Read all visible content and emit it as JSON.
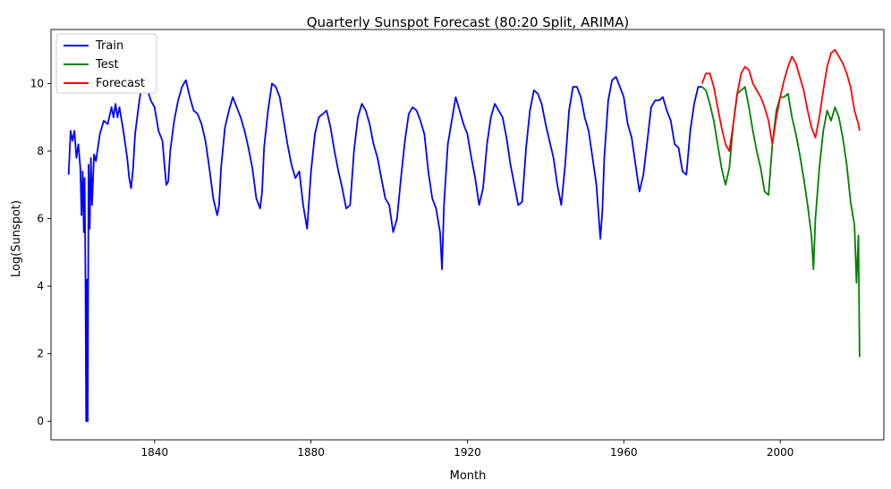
{
  "chart_data": {
    "type": "line",
    "title": "Quarterly Sunspot Forecast (80:20 Split, ARIMA)",
    "xlabel": "Month",
    "ylabel": "Log(Sunspot)",
    "xlim": [
      1813.5,
      2026.5
    ],
    "ylim": [
      -0.55,
      11.6
    ],
    "xticks": [
      1840,
      1880,
      1920,
      1960,
      2000
    ],
    "yticks": [
      0,
      2,
      4,
      6,
      8,
      10
    ],
    "grid": false,
    "legend_position": "top-left",
    "series": [
      {
        "name": "Train",
        "color": "#0000ff",
        "points": [
          [
            1818.0,
            7.3
          ],
          [
            1818.5,
            8.6
          ],
          [
            1819.0,
            8.3
          ],
          [
            1819.5,
            8.6
          ],
          [
            1820.0,
            7.8
          ],
          [
            1820.5,
            8.2
          ],
          [
            1821.0,
            7.5
          ],
          [
            1821.3,
            6.1
          ],
          [
            1821.6,
            7.4
          ],
          [
            1821.9,
            5.6
          ],
          [
            1822.1,
            7.2
          ],
          [
            1822.3,
            4.4
          ],
          [
            1822.5,
            0.0
          ],
          [
            1822.7,
            4.2
          ],
          [
            1822.9,
            0.0
          ],
          [
            1823.1,
            7.6
          ],
          [
            1823.4,
            5.7
          ],
          [
            1823.7,
            7.8
          ],
          [
            1824.0,
            6.4
          ],
          [
            1824.5,
            7.9
          ],
          [
            1825.0,
            7.7
          ],
          [
            1826.0,
            8.5
          ],
          [
            1827.0,
            8.9
          ],
          [
            1828.0,
            8.8
          ],
          [
            1829.0,
            9.3
          ],
          [
            1829.5,
            9.0
          ],
          [
            1830.0,
            9.4
          ],
          [
            1830.5,
            9.0
          ],
          [
            1831.0,
            9.3
          ],
          [
            1832.0,
            8.6
          ],
          [
            1833.0,
            7.8
          ],
          [
            1833.5,
            7.2
          ],
          [
            1834.0,
            6.9
          ],
          [
            1834.5,
            7.5
          ],
          [
            1835.0,
            8.5
          ],
          [
            1836.0,
            9.4
          ],
          [
            1837.0,
            10.2
          ],
          [
            1837.5,
            9.9
          ],
          [
            1838.0,
            9.9
          ],
          [
            1839.0,
            9.5
          ],
          [
            1840.0,
            9.3
          ],
          [
            1841.0,
            8.6
          ],
          [
            1842.0,
            8.3
          ],
          [
            1842.5,
            7.6
          ],
          [
            1843.0,
            7.0
          ],
          [
            1843.5,
            7.1
          ],
          [
            1844.0,
            8.0
          ],
          [
            1845.0,
            8.9
          ],
          [
            1846.0,
            9.5
          ],
          [
            1847.0,
            9.9
          ],
          [
            1847.5,
            10.0
          ],
          [
            1848.0,
            10.1
          ],
          [
            1849.0,
            9.6
          ],
          [
            1850.0,
            9.2
          ],
          [
            1851.0,
            9.1
          ],
          [
            1852.0,
            8.8
          ],
          [
            1853.0,
            8.3
          ],
          [
            1854.0,
            7.5
          ],
          [
            1855.0,
            6.6
          ],
          [
            1856.0,
            6.1
          ],
          [
            1856.5,
            6.4
          ],
          [
            1857.0,
            7.5
          ],
          [
            1858.0,
            8.7
          ],
          [
            1859.0,
            9.2
          ],
          [
            1860.0,
            9.6
          ],
          [
            1861.0,
            9.3
          ],
          [
            1862.0,
            9.0
          ],
          [
            1863.0,
            8.6
          ],
          [
            1864.0,
            8.1
          ],
          [
            1865.0,
            7.5
          ],
          [
            1866.0,
            6.6
          ],
          [
            1867.0,
            6.3
          ],
          [
            1867.5,
            6.8
          ],
          [
            1868.0,
            8.1
          ],
          [
            1869.0,
            9.2
          ],
          [
            1870.0,
            10.0
          ],
          [
            1871.0,
            9.9
          ],
          [
            1872.0,
            9.6
          ],
          [
            1873.0,
            8.9
          ],
          [
            1874.0,
            8.2
          ],
          [
            1875.0,
            7.6
          ],
          [
            1876.0,
            7.2
          ],
          [
            1877.0,
            7.4
          ],
          [
            1878.0,
            6.4
          ],
          [
            1879.0,
            5.7
          ],
          [
            1880.0,
            7.4
          ],
          [
            1881.0,
            8.5
          ],
          [
            1882.0,
            9.0
          ],
          [
            1883.0,
            9.1
          ],
          [
            1884.0,
            9.2
          ],
          [
            1885.0,
            8.7
          ],
          [
            1886.0,
            8.0
          ],
          [
            1887.0,
            7.4
          ],
          [
            1888.0,
            6.9
          ],
          [
            1889.0,
            6.3
          ],
          [
            1890.0,
            6.4
          ],
          [
            1891.0,
            8.0
          ],
          [
            1892.0,
            9.0
          ],
          [
            1893.0,
            9.4
          ],
          [
            1894.0,
            9.2
          ],
          [
            1895.0,
            8.8
          ],
          [
            1896.0,
            8.2
          ],
          [
            1897.0,
            7.8
          ],
          [
            1898.0,
            7.2
          ],
          [
            1899.0,
            6.6
          ],
          [
            1900.0,
            6.4
          ],
          [
            1901.0,
            5.6
          ],
          [
            1902.0,
            6.0
          ],
          [
            1903.0,
            7.2
          ],
          [
            1904.0,
            8.3
          ],
          [
            1905.0,
            9.1
          ],
          [
            1906.0,
            9.3
          ],
          [
            1907.0,
            9.2
          ],
          [
            1908.0,
            8.9
          ],
          [
            1909.0,
            8.5
          ],
          [
            1910.0,
            7.4
          ],
          [
            1911.0,
            6.6
          ],
          [
            1912.0,
            6.3
          ],
          [
            1913.0,
            5.6
          ],
          [
            1913.5,
            4.5
          ],
          [
            1914.0,
            6.4
          ],
          [
            1915.0,
            8.2
          ],
          [
            1916.0,
            8.9
          ],
          [
            1917.0,
            9.6
          ],
          [
            1918.0,
            9.2
          ],
          [
            1919.0,
            8.8
          ],
          [
            1920.0,
            8.5
          ],
          [
            1921.0,
            7.8
          ],
          [
            1922.0,
            7.2
          ],
          [
            1923.0,
            6.4
          ],
          [
            1924.0,
            6.9
          ],
          [
            1925.0,
            8.2
          ],
          [
            1926.0,
            9.0
          ],
          [
            1927.0,
            9.4
          ],
          [
            1928.0,
            9.2
          ],
          [
            1929.0,
            9.0
          ],
          [
            1930.0,
            8.4
          ],
          [
            1931.0,
            7.6
          ],
          [
            1932.0,
            7.0
          ],
          [
            1933.0,
            6.4
          ],
          [
            1934.0,
            6.5
          ],
          [
            1935.0,
            8.1
          ],
          [
            1936.0,
            9.2
          ],
          [
            1937.0,
            9.8
          ],
          [
            1938.0,
            9.7
          ],
          [
            1939.0,
            9.4
          ],
          [
            1940.0,
            8.8
          ],
          [
            1941.0,
            8.3
          ],
          [
            1942.0,
            7.8
          ],
          [
            1943.0,
            7.0
          ],
          [
            1944.0,
            6.4
          ],
          [
            1945.0,
            7.6
          ],
          [
            1946.0,
            9.2
          ],
          [
            1947.0,
            9.9
          ],
          [
            1948.0,
            9.9
          ],
          [
            1949.0,
            9.6
          ],
          [
            1950.0,
            9.0
          ],
          [
            1951.0,
            8.6
          ],
          [
            1952.0,
            7.8
          ],
          [
            1953.0,
            7.0
          ],
          [
            1954.0,
            5.4
          ],
          [
            1954.5,
            6.2
          ],
          [
            1955.0,
            7.8
          ],
          [
            1956.0,
            9.5
          ],
          [
            1957.0,
            10.1
          ],
          [
            1958.0,
            10.2
          ],
          [
            1959.0,
            9.9
          ],
          [
            1960.0,
            9.6
          ],
          [
            1961.0,
            8.8
          ],
          [
            1962.0,
            8.4
          ],
          [
            1963.0,
            7.6
          ],
          [
            1964.0,
            6.8
          ],
          [
            1965.0,
            7.3
          ],
          [
            1966.0,
            8.3
          ],
          [
            1967.0,
            9.3
          ],
          [
            1968.0,
            9.5
          ],
          [
            1969.0,
            9.5
          ],
          [
            1970.0,
            9.6
          ],
          [
            1971.0,
            9.2
          ],
          [
            1972.0,
            8.9
          ],
          [
            1973.0,
            8.2
          ],
          [
            1974.0,
            8.1
          ],
          [
            1975.0,
            7.4
          ],
          [
            1976.0,
            7.3
          ],
          [
            1977.0,
            8.6
          ],
          [
            1978.0,
            9.4
          ],
          [
            1979.0,
            9.9
          ],
          [
            1980.0,
            9.9
          ]
        ]
      },
      {
        "name": "Test",
        "color": "#008000",
        "points": [
          [
            1980.0,
            9.9
          ],
          [
            1981.0,
            9.8
          ],
          [
            1982.0,
            9.4
          ],
          [
            1983.0,
            8.9
          ],
          [
            1984.0,
            8.2
          ],
          [
            1985.0,
            7.5
          ],
          [
            1986.0,
            7.0
          ],
          [
            1987.0,
            7.5
          ],
          [
            1988.0,
            8.8
          ],
          [
            1989.0,
            9.7
          ],
          [
            1990.0,
            9.8
          ],
          [
            1991.0,
            9.9
          ],
          [
            1992.0,
            9.3
          ],
          [
            1993.0,
            8.6
          ],
          [
            1994.0,
            8.0
          ],
          [
            1995.0,
            7.5
          ],
          [
            1996.0,
            6.8
          ],
          [
            1997.0,
            6.7
          ],
          [
            1998.0,
            8.2
          ],
          [
            1999.0,
            9.2
          ],
          [
            2000.0,
            9.6
          ],
          [
            2001.0,
            9.6
          ],
          [
            2002.0,
            9.7
          ],
          [
            2003.0,
            9.0
          ],
          [
            2004.0,
            8.5
          ],
          [
            2005.0,
            7.9
          ],
          [
            2006.0,
            7.2
          ],
          [
            2007.0,
            6.4
          ],
          [
            2008.0,
            5.5
          ],
          [
            2008.5,
            4.5
          ],
          [
            2009.0,
            6.0
          ],
          [
            2010.0,
            7.5
          ],
          [
            2011.0,
            8.6
          ],
          [
            2012.0,
            9.2
          ],
          [
            2013.0,
            8.9
          ],
          [
            2014.0,
            9.3
          ],
          [
            2015.0,
            9.0
          ],
          [
            2016.0,
            8.4
          ],
          [
            2017.0,
            7.6
          ],
          [
            2018.0,
            6.5
          ],
          [
            2019.0,
            5.8
          ],
          [
            2019.5,
            4.1
          ],
          [
            2020.0,
            5.5
          ],
          [
            2020.3,
            1.9
          ]
        ]
      },
      {
        "name": "Forecast",
        "color": "#ff0000",
        "points": [
          [
            1980.0,
            10.0
          ],
          [
            1981.0,
            10.3
          ],
          [
            1982.0,
            10.3
          ],
          [
            1983.0,
            9.9
          ],
          [
            1984.0,
            9.3
          ],
          [
            1985.0,
            8.7
          ],
          [
            1986.0,
            8.2
          ],
          [
            1987.0,
            8.0
          ],
          [
            1988.0,
            8.8
          ],
          [
            1989.0,
            9.7
          ],
          [
            1990.0,
            10.3
          ],
          [
            1991.0,
            10.5
          ],
          [
            1992.0,
            10.4
          ],
          [
            1993.0,
            10.0
          ],
          [
            1994.0,
            9.8
          ],
          [
            1995.0,
            9.6
          ],
          [
            1996.0,
            9.3
          ],
          [
            1997.0,
            8.9
          ],
          [
            1998.0,
            8.2
          ],
          [
            1999.0,
            9.0
          ],
          [
            2000.0,
            9.6
          ],
          [
            2001.0,
            10.1
          ],
          [
            2002.0,
            10.5
          ],
          [
            2003.0,
            10.8
          ],
          [
            2004.0,
            10.6
          ],
          [
            2005.0,
            10.2
          ],
          [
            2006.0,
            9.8
          ],
          [
            2007.0,
            9.2
          ],
          [
            2008.0,
            8.7
          ],
          [
            2009.0,
            8.4
          ],
          [
            2010.0,
            9.0
          ],
          [
            2011.0,
            9.8
          ],
          [
            2012.0,
            10.5
          ],
          [
            2013.0,
            10.9
          ],
          [
            2014.0,
            11.0
          ],
          [
            2015.0,
            10.8
          ],
          [
            2016.0,
            10.6
          ],
          [
            2017.0,
            10.3
          ],
          [
            2018.0,
            9.9
          ],
          [
            2019.0,
            9.2
          ],
          [
            2020.0,
            8.8
          ],
          [
            2020.3,
            8.6
          ]
        ]
      }
    ]
  }
}
